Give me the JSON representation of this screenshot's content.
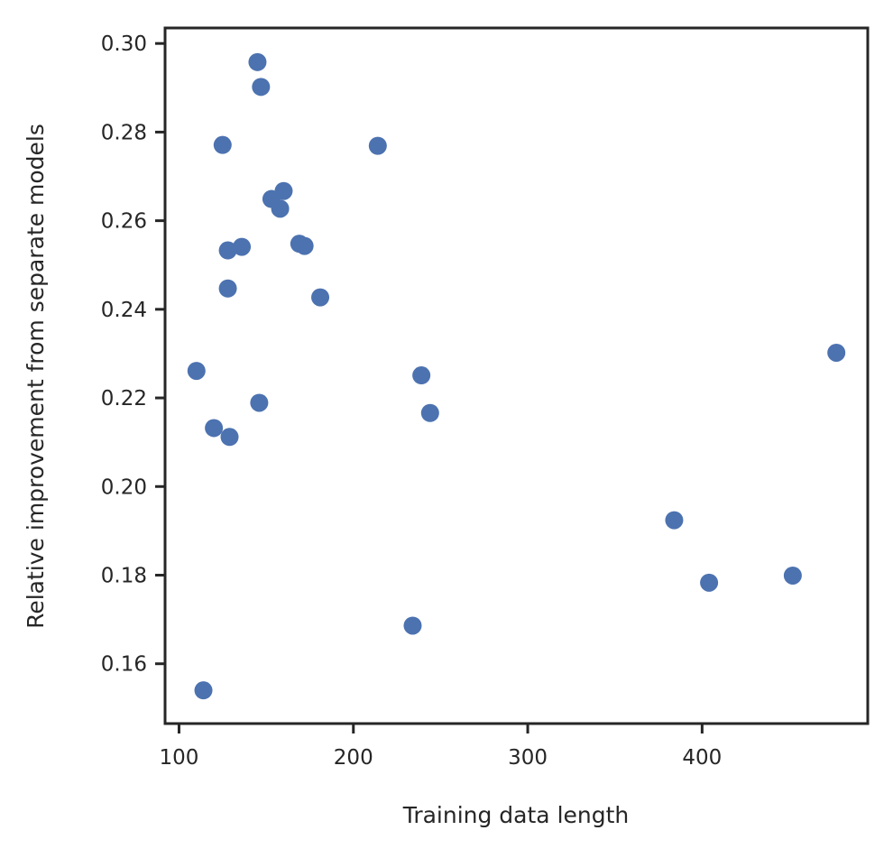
{
  "chart_data": {
    "type": "scatter",
    "title": "",
    "xlabel": "Training data length",
    "ylabel": "Relative improvement from separate models",
    "xlim": [
      92,
      495
    ],
    "ylim": [
      0.1465,
      0.3035
    ],
    "xticks": [
      100,
      200,
      300,
      400
    ],
    "xtick_labels": [
      "100",
      "200",
      "300",
      "400"
    ],
    "yticks": [
      0.16,
      0.18,
      0.2,
      0.22,
      0.24,
      0.26,
      0.28,
      0.3
    ],
    "ytick_labels": [
      "0.16",
      "0.18",
      "0.20",
      "0.22",
      "0.24",
      "0.26",
      "0.28",
      "0.30"
    ],
    "grid": false,
    "color": "#4c72b0",
    "points": [
      {
        "x": 145,
        "y": 0.2958
      },
      {
        "x": 147,
        "y": 0.2902
      },
      {
        "x": 125,
        "y": 0.2771
      },
      {
        "x": 214,
        "y": 0.2769
      },
      {
        "x": 160,
        "y": 0.2667
      },
      {
        "x": 153,
        "y": 0.2649
      },
      {
        "x": 158,
        "y": 0.2627
      },
      {
        "x": 169,
        "y": 0.2548
      },
      {
        "x": 172,
        "y": 0.2543
      },
      {
        "x": 136,
        "y": 0.2541
      },
      {
        "x": 128,
        "y": 0.2533
      },
      {
        "x": 128,
        "y": 0.2447
      },
      {
        "x": 181,
        "y": 0.2427
      },
      {
        "x": 110,
        "y": 0.2261
      },
      {
        "x": 239,
        "y": 0.2251
      },
      {
        "x": 477,
        "y": 0.2302
      },
      {
        "x": 146,
        "y": 0.2189
      },
      {
        "x": 244,
        "y": 0.2166
      },
      {
        "x": 120,
        "y": 0.2132
      },
      {
        "x": 129,
        "y": 0.2112
      },
      {
        "x": 384,
        "y": 0.1924
      },
      {
        "x": 452,
        "y": 0.1799
      },
      {
        "x": 404,
        "y": 0.1783
      },
      {
        "x": 234,
        "y": 0.1686
      },
      {
        "x": 114,
        "y": 0.154
      }
    ]
  }
}
